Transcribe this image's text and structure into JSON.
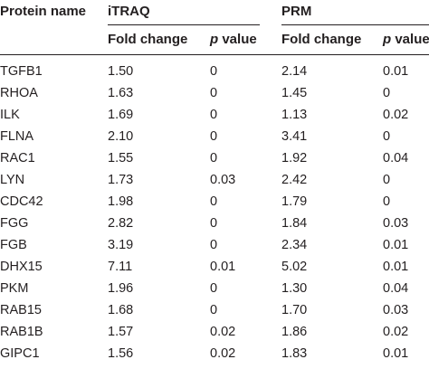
{
  "headers": {
    "protein_name": "Protein name",
    "itraq": "iTRAQ",
    "prm": "PRM",
    "fold_change": "Fold change",
    "p_value_p": "p",
    "p_value_word": " value"
  },
  "rows": [
    {
      "protein": "TGFB1",
      "itraq_fc": "1.50",
      "itraq_p": "0",
      "prm_fc": "2.14",
      "prm_p": "0.01"
    },
    {
      "protein": "RHOA",
      "itraq_fc": "1.63",
      "itraq_p": "0",
      "prm_fc": "1.45",
      "prm_p": "0"
    },
    {
      "protein": "ILK",
      "itraq_fc": "1.69",
      "itraq_p": "0",
      "prm_fc": "1.13",
      "prm_p": "0.02"
    },
    {
      "protein": "FLNA",
      "itraq_fc": "2.10",
      "itraq_p": "0",
      "prm_fc": "3.41",
      "prm_p": "0"
    },
    {
      "protein": "RAC1",
      "itraq_fc": "1.55",
      "itraq_p": "0",
      "prm_fc": "1.92",
      "prm_p": "0.04"
    },
    {
      "protein": "LYN",
      "itraq_fc": "1.73",
      "itraq_p": "0.03",
      "prm_fc": "2.42",
      "prm_p": "0"
    },
    {
      "protein": "CDC42",
      "itraq_fc": "1.98",
      "itraq_p": "0",
      "prm_fc": "1.79",
      "prm_p": "0"
    },
    {
      "protein": "FGG",
      "itraq_fc": "2.82",
      "itraq_p": "0",
      "prm_fc": "1.84",
      "prm_p": "0.03"
    },
    {
      "protein": "FGB",
      "itraq_fc": "3.19",
      "itraq_p": "0",
      "prm_fc": "2.34",
      "prm_p": "0.01"
    },
    {
      "protein": "DHX15",
      "itraq_fc": "7.11",
      "itraq_p": "0.01",
      "prm_fc": "5.02",
      "prm_p": "0.01"
    },
    {
      "protein": "PKM",
      "itraq_fc": "1.96",
      "itraq_p": "0",
      "prm_fc": "1.30",
      "prm_p": "0.04"
    },
    {
      "protein": "RAB15",
      "itraq_fc": "1.68",
      "itraq_p": "0",
      "prm_fc": "1.70",
      "prm_p": "0.03"
    },
    {
      "protein": "RAB1B",
      "itraq_fc": "1.57",
      "itraq_p": "0.02",
      "prm_fc": "1.86",
      "prm_p": "0.02"
    },
    {
      "protein": "GIPC1",
      "itraq_fc": "1.56",
      "itraq_p": "0.02",
      "prm_fc": "1.83",
      "prm_p": "0.01"
    }
  ]
}
